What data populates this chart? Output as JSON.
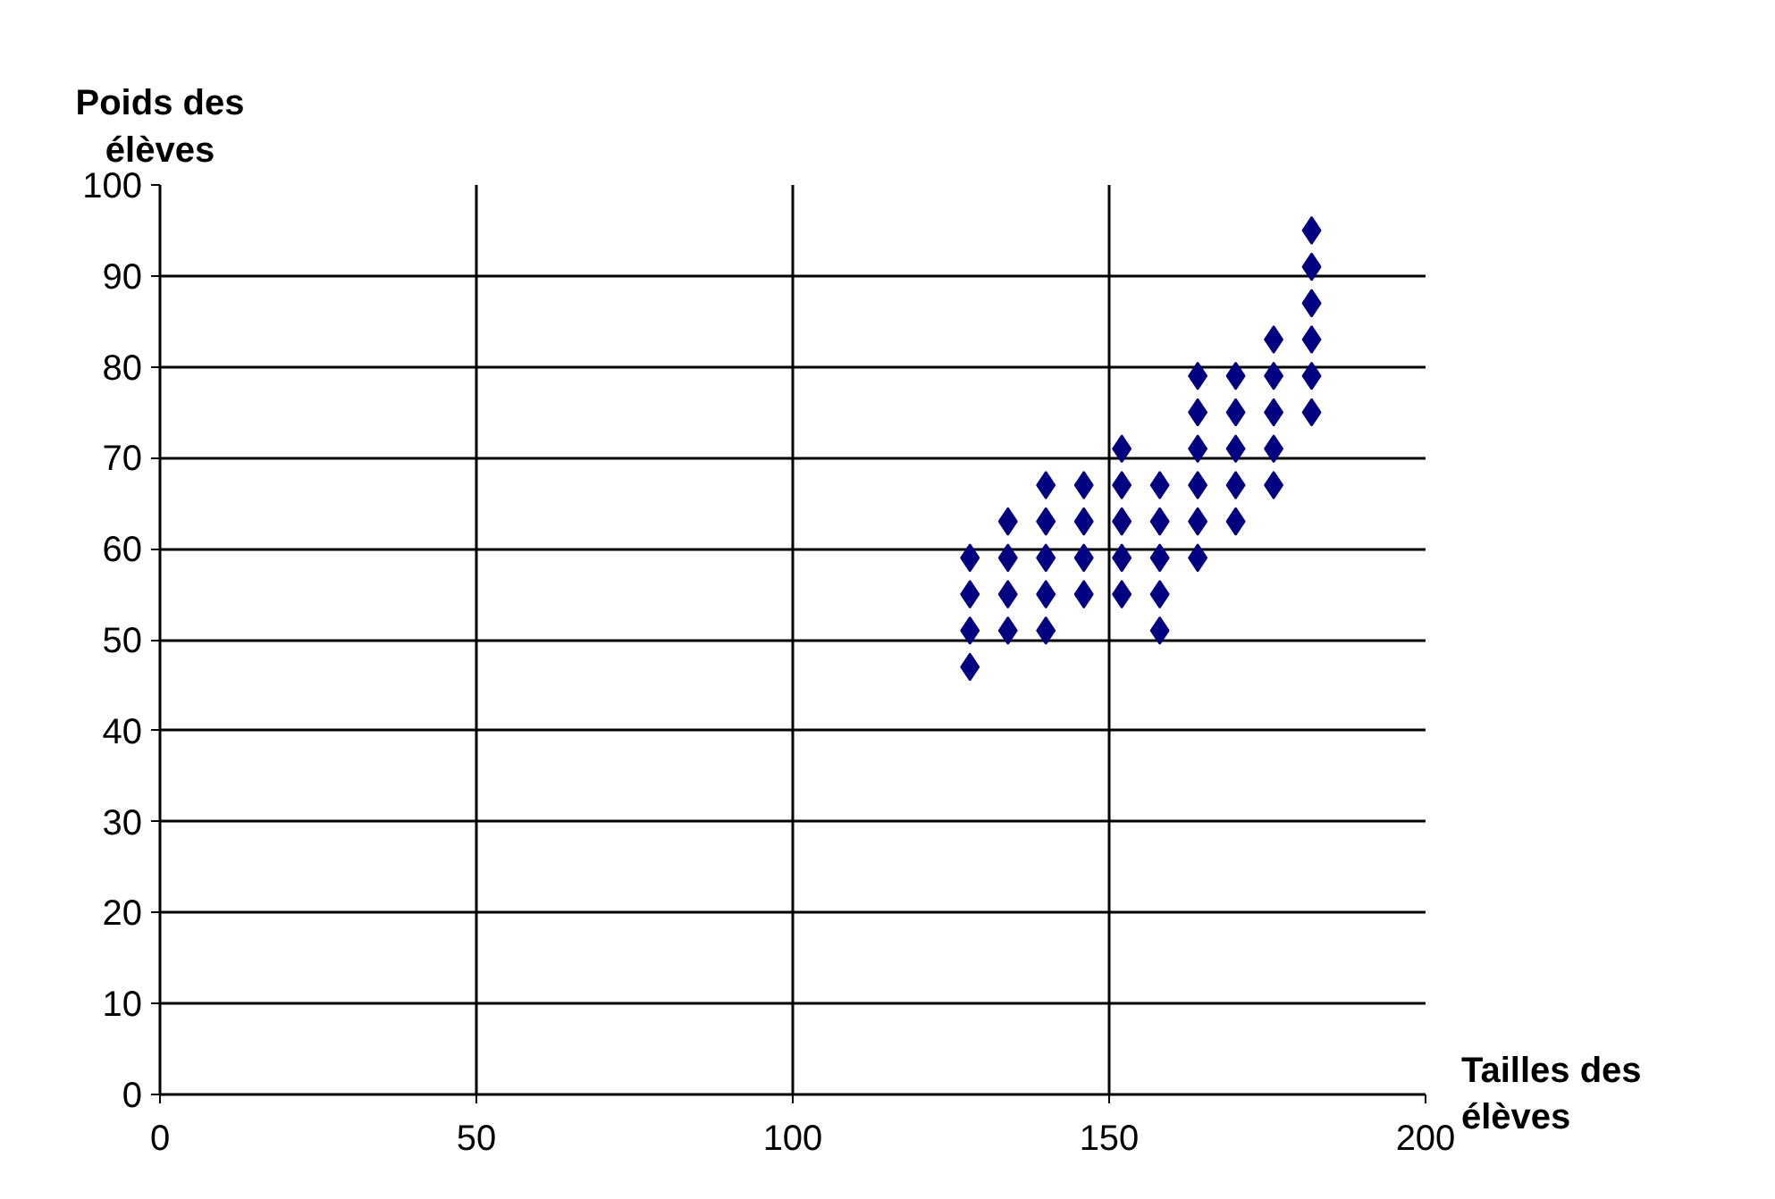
{
  "chart_data": {
    "type": "scatter",
    "xlabel": "Tailles des élèves",
    "ylabel": "Poids des élèves",
    "x": [
      128,
      128,
      128,
      128,
      134,
      134,
      134,
      134,
      140,
      140,
      140,
      140,
      140,
      146,
      146,
      146,
      146,
      152,
      152,
      152,
      152,
      152,
      158,
      158,
      158,
      158,
      158,
      164,
      164,
      164,
      164,
      164,
      164,
      170,
      170,
      170,
      170,
      170,
      176,
      176,
      176,
      176,
      176,
      182,
      182,
      182,
      182,
      182,
      182
    ],
    "series": [
      {
        "color": "#000080",
        "values": [
          59,
          55,
          51,
          47,
          63,
          59,
          55,
          51,
          67,
          63,
          59,
          55,
          51,
          67,
          63,
          59,
          55,
          71,
          67,
          63,
          59,
          55,
          67,
          63,
          59,
          55,
          51,
          79,
          75,
          71,
          67,
          63,
          59,
          79,
          75,
          71,
          67,
          63,
          83,
          79,
          75,
          71,
          67,
          95,
          91,
          87,
          83,
          79,
          75
        ]
      }
    ],
    "xlim": [
      0,
      200
    ],
    "ylim": [
      0,
      100
    ],
    "xticks": [
      0,
      50,
      100,
      150,
      200
    ],
    "yticks": [
      0,
      10,
      20,
      30,
      40,
      50,
      60,
      70,
      80,
      90,
      100
    ],
    "grid": true,
    "marker": "diamond"
  }
}
